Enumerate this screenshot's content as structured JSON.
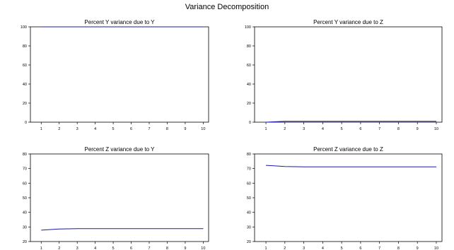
{
  "title": "Variance Decomposition",
  "colors": {
    "series": "#1a1aa8",
    "frame": "#000000",
    "background": "#ffffff"
  },
  "chart_data": [
    {
      "type": "line",
      "title": "Percent Y variance due to Y",
      "x": [
        1,
        2,
        3,
        4,
        5,
        6,
        7,
        8,
        9,
        10
      ],
      "values": [
        100,
        100,
        100,
        100,
        100,
        100,
        100,
        100,
        100,
        100
      ],
      "xlim": [
        0.4,
        10.3
      ],
      "ylim": [
        0,
        100
      ],
      "xticks": [
        "1",
        "2",
        "3",
        "4",
        "5",
        "6",
        "7",
        "8",
        "9",
        "10"
      ],
      "yticks": [
        "0",
        "20",
        "40",
        "60",
        "80",
        "100"
      ]
    },
    {
      "type": "line",
      "title": "Percent Y variance due to Z",
      "x": [
        1,
        2,
        3,
        4,
        5,
        6,
        7,
        8,
        9,
        10
      ],
      "values": [
        0,
        1,
        1,
        1,
        1,
        1,
        1,
        1,
        1,
        1
      ],
      "xlim": [
        0.4,
        10.3
      ],
      "ylim": [
        0,
        100
      ],
      "xticks": [
        "1",
        "2",
        "3",
        "4",
        "5",
        "6",
        "7",
        "8",
        "9",
        "10"
      ],
      "yticks": [
        "0",
        "20",
        "40",
        "60",
        "80",
        "100"
      ]
    },
    {
      "type": "line",
      "title": "Percent Z variance due to Y",
      "x": [
        1,
        2,
        3,
        4,
        5,
        6,
        7,
        8,
        9,
        10
      ],
      "values": [
        27.8,
        28.6,
        28.8,
        28.8,
        28.8,
        28.8,
        28.8,
        28.8,
        28.8,
        28.8
      ],
      "xlim": [
        0.4,
        10.3
      ],
      "ylim": [
        20,
        80
      ],
      "xticks": [
        "1",
        "2",
        "3",
        "4",
        "5",
        "6",
        "7",
        "8",
        "9",
        "10"
      ],
      "yticks": [
        "20",
        "30",
        "40",
        "50",
        "60",
        "70",
        "80"
      ]
    },
    {
      "type": "line",
      "title": "Percent Z variance due to Z",
      "x": [
        1,
        2,
        3,
        4,
        5,
        6,
        7,
        8,
        9,
        10
      ],
      "values": [
        72.2,
        71.4,
        71.2,
        71.2,
        71.2,
        71.2,
        71.2,
        71.2,
        71.2,
        71.2
      ],
      "xlim": [
        0.4,
        10.3
      ],
      "ylim": [
        20,
        80
      ],
      "xticks": [
        "1",
        "2",
        "3",
        "4",
        "5",
        "6",
        "7",
        "8",
        "9",
        "10"
      ],
      "yticks": [
        "20",
        "30",
        "40",
        "50",
        "60",
        "70",
        "80"
      ]
    }
  ]
}
